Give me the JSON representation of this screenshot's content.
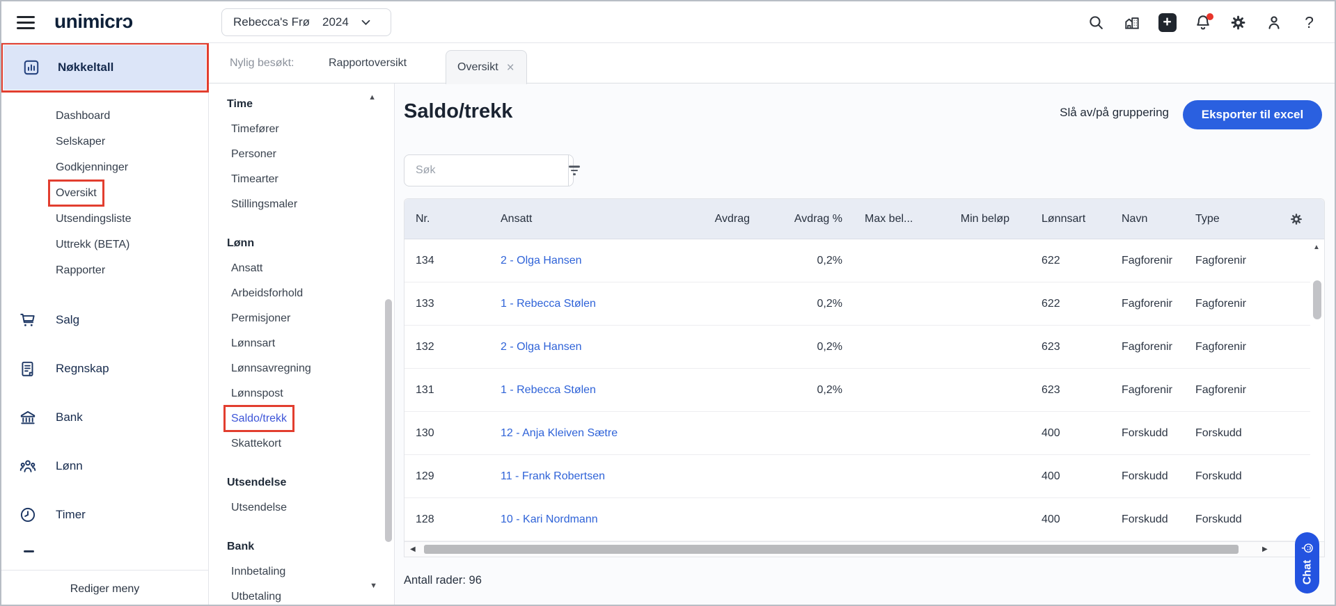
{
  "colors": {
    "accent_blue": "#2a60e0",
    "link_blue": "#2f63d8",
    "annotation_red": "#e23e2f",
    "notification_red": "#e8352b",
    "active_row_bg": "#dce5f8",
    "table_header_bg": "#e8ecf4"
  },
  "topbar": {
    "logo_text": "unimicrɔ",
    "company_selector": {
      "company": "Rebecca's Frø",
      "year": "2024"
    },
    "icon_names": [
      "search",
      "company-register",
      "add",
      "notifications",
      "settings",
      "profile",
      "help"
    ],
    "help_glyph": "?"
  },
  "sidebar": {
    "active_item": "Nøkkeltall",
    "sub_items": [
      "Dashboard",
      "Selskaper",
      "Godkjenninger",
      "Oversikt",
      "Utsendingsliste",
      "Uttrekk (BETA)",
      "Rapporter"
    ],
    "annotated_sub_item": "Oversikt",
    "sections": [
      {
        "label": "Salg",
        "icon": "cart"
      },
      {
        "label": "Regnskap",
        "icon": "ledger"
      },
      {
        "label": "Bank",
        "icon": "bank"
      },
      {
        "label": "Lønn",
        "icon": "people"
      },
      {
        "label": "Timer",
        "icon": "clock"
      }
    ],
    "footer_action": "Rediger meny"
  },
  "module_menu": {
    "groups": [
      {
        "title": "Time",
        "items": [
          "Timefører",
          "Personer",
          "Timearter",
          "Stillingsmaler"
        ]
      },
      {
        "title": "Lønn",
        "items": [
          "Ansatt",
          "Arbeidsforhold",
          "Permisjoner",
          "Lønnsart",
          "Lønnsavregning",
          "Lønnspost",
          "Saldo/trekk",
          "Skattekort"
        ]
      },
      {
        "title": "Utsendelse",
        "items": [
          "Utsendelse"
        ]
      },
      {
        "title": "Bank",
        "items": [
          "Innbetaling",
          "Utbetaling"
        ]
      }
    ],
    "active_item": "Saldo/trekk"
  },
  "recent_bar": {
    "label": "Nylig besøkt:",
    "link": "Rapportoversikt",
    "active_tab": "Oversikt"
  },
  "main": {
    "title": "Saldo/trekk",
    "grouping_action": "Slå av/på gruppering",
    "export_button": "Eksporter til excel",
    "search_placeholder": "Søk",
    "table": {
      "columns": [
        "Nr.",
        "Ansatt",
        "Avdrag",
        "Avdrag %",
        "Max bel...",
        "Min beløp",
        "Lønnsart",
        "Navn",
        "Type"
      ],
      "rows": [
        [
          "134",
          "2 - Olga Hansen",
          "",
          "0,2%",
          "",
          "",
          "622",
          "Fagforenir",
          "Fagforenir"
        ],
        [
          "133",
          "1 - Rebecca Stølen",
          "",
          "0,2%",
          "",
          "",
          "622",
          "Fagforenir",
          "Fagforenir"
        ],
        [
          "132",
          "2 - Olga Hansen",
          "",
          "0,2%",
          "",
          "",
          "623",
          "Fagforenir",
          "Fagforenir"
        ],
        [
          "131",
          "1 - Rebecca Stølen",
          "",
          "0,2%",
          "",
          "",
          "623",
          "Fagforenir",
          "Fagforenir"
        ],
        [
          "130",
          "12 - Anja Kleiven Sætre",
          "",
          "",
          "",
          "",
          "400",
          "Forskudd",
          "Forskudd"
        ],
        [
          "129",
          "11 - Frank Robertsen",
          "",
          "",
          "",
          "",
          "400",
          "Forskudd",
          "Forskudd"
        ],
        [
          "128",
          "10 - Kari Nordmann",
          "",
          "",
          "",
          "",
          "400",
          "Forskudd",
          "Forskudd"
        ]
      ]
    },
    "row_count_label": "Antall rader: 96"
  },
  "chat_button": {
    "label": "Chat"
  }
}
